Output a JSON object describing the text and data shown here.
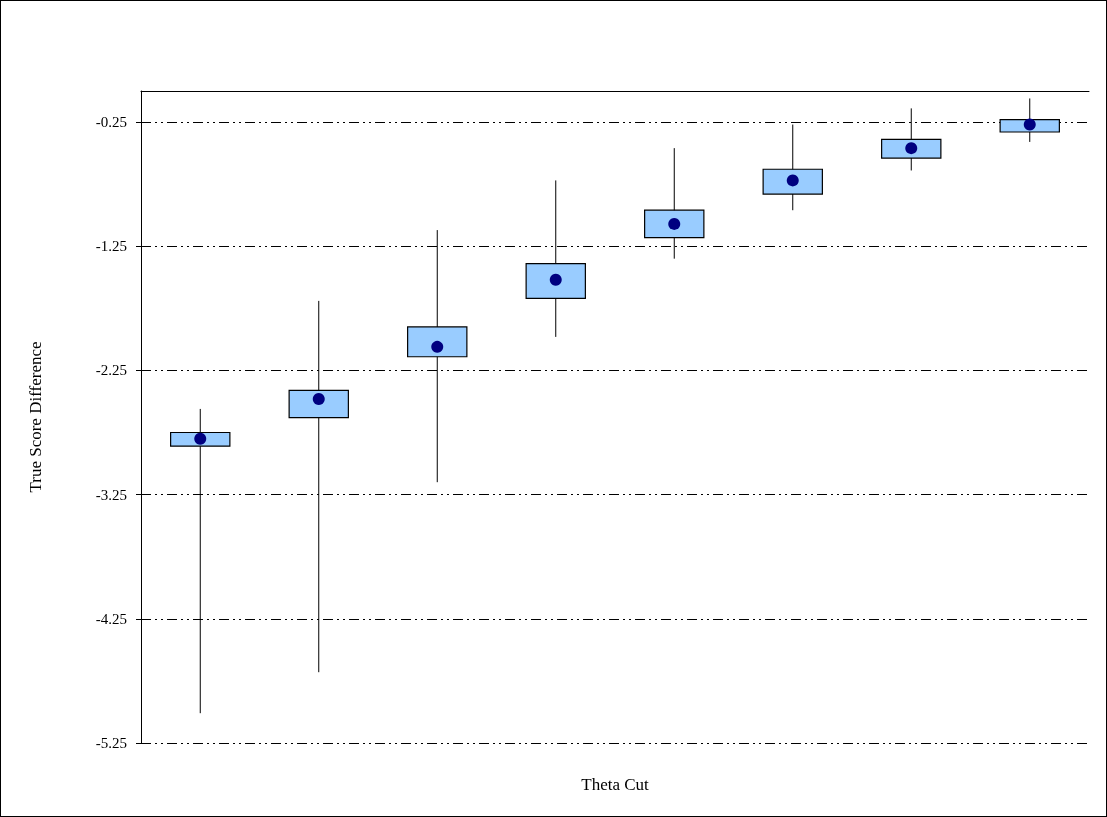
{
  "chart_data": {
    "type": "box",
    "xlabel": "Theta Cut",
    "ylabel": "True Score Difference",
    "categories": [
      null,
      null,
      null,
      null,
      null,
      null,
      null,
      null
    ],
    "color": "#99ccff",
    "boxes": [
      {
        "low": -5.01,
        "q1": -2.86,
        "median": -2.8,
        "q3": -2.75,
        "high": -2.56
      },
      {
        "low": -4.68,
        "q1": -2.63,
        "median": -2.48,
        "q3": -2.41,
        "high": -1.69
      },
      {
        "low": -3.15,
        "q1": -2.14,
        "median": -2.06,
        "q3": -1.9,
        "high": -1.12
      },
      {
        "low": -1.98,
        "q1": -1.67,
        "median": -1.52,
        "q3": -1.39,
        "high": -0.72
      },
      {
        "low": -1.35,
        "q1": -1.18,
        "median": -1.07,
        "q3": -0.96,
        "high": -0.46
      },
      {
        "low": -0.96,
        "q1": -0.83,
        "median": -0.72,
        "q3": -0.63,
        "high": -0.27
      },
      {
        "low": -0.64,
        "q1": -0.54,
        "median": -0.46,
        "q3": -0.39,
        "high": -0.14
      },
      {
        "low": -0.41,
        "q1": -0.33,
        "median": -0.27,
        "q3": -0.23,
        "high": -0.06
      }
    ],
    "ylim": [
      -5.25,
      0
    ],
    "yticks": [
      -5.25,
      -4.25,
      -3.25,
      -2.25,
      -1.25,
      -0.25
    ],
    "grid": "y"
  }
}
